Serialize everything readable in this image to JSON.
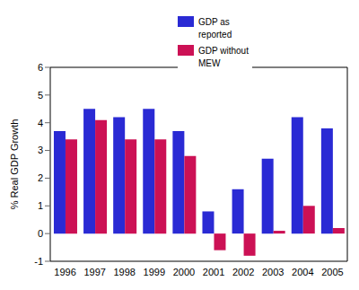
{
  "chart_data": {
    "type": "bar",
    "categories": [
      "1996",
      "1997",
      "1998",
      "1999",
      "2000",
      "2001",
      "2002",
      "2003",
      "2004",
      "2005"
    ],
    "series": [
      {
        "name": "GDP as reported",
        "color": "#2a2ad4",
        "values": [
          3.7,
          4.5,
          4.2,
          4.5,
          3.7,
          0.8,
          1.6,
          2.7,
          4.2,
          3.8
        ]
      },
      {
        "name": "GDP without MEW",
        "color": "#cc1155",
        "values": [
          3.4,
          4.1,
          3.4,
          3.4,
          2.8,
          -0.6,
          -0.8,
          0.1,
          1.0,
          0.2
        ]
      }
    ],
    "y_label": "% Real GDP Growth",
    "ylim": [
      -1,
      6
    ],
    "yticks": [
      -1,
      0,
      1,
      2,
      3,
      4,
      5,
      6
    ],
    "grid": false,
    "legend": "upper center"
  }
}
